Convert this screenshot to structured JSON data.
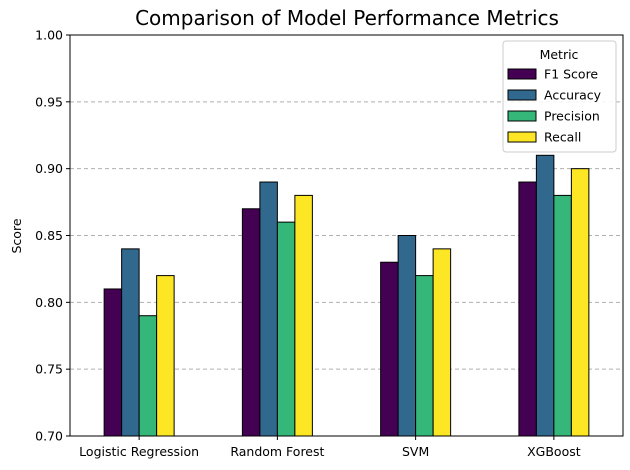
{
  "chart_data": {
    "type": "bar",
    "title": "Comparison of Model Performance Metrics",
    "xlabel": "",
    "ylabel": "Score",
    "ylim": [
      0.7,
      1.0
    ],
    "yticks": [
      "0.70",
      "0.75",
      "0.80",
      "0.85",
      "0.90",
      "0.95",
      "1.00"
    ],
    "ytick_values": [
      0.7,
      0.75,
      0.8,
      0.85,
      0.9,
      0.95,
      1.0
    ],
    "grid": "horizontal dashed",
    "legend_title": "Metric",
    "legend_position": "top-right",
    "categories": [
      "Logistic Regression",
      "Random Forest",
      "SVM",
      "XGBoost"
    ],
    "series": [
      {
        "name": "F1 Score",
        "color": "#440154",
        "values": [
          0.81,
          0.87,
          0.83,
          0.89
        ]
      },
      {
        "name": "Accuracy",
        "color": "#31688e",
        "values": [
          0.84,
          0.89,
          0.85,
          0.91
        ]
      },
      {
        "name": "Precision",
        "color": "#35b779",
        "values": [
          0.79,
          0.86,
          0.82,
          0.88
        ]
      },
      {
        "name": "Recall",
        "color": "#fde725",
        "values": [
          0.82,
          0.88,
          0.84,
          0.9
        ]
      }
    ]
  }
}
